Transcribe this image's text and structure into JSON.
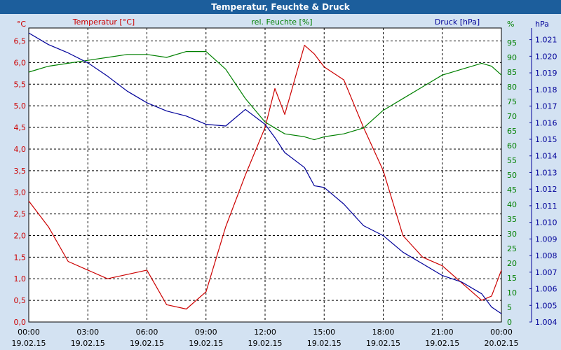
{
  "window": {
    "title": "Temperatur, Feuchte & Druck"
  },
  "colors": {
    "temperature": "#cc0000",
    "humidity": "#008000",
    "pressure": "#000099",
    "grid": "#000000",
    "plot_background": "#ffffff"
  },
  "chart_data": {
    "type": "line",
    "title": "Temperatur, Feuchte & Druck",
    "grid": true,
    "x_ticks": [
      {
        "time": "00:00",
        "date": "19.02.15"
      },
      {
        "time": "03:00",
        "date": "19.02.15"
      },
      {
        "time": "06:00",
        "date": "19.02.15"
      },
      {
        "time": "09:00",
        "date": "19.02.15"
      },
      {
        "time": "12:00",
        "date": "19.02.15"
      },
      {
        "time": "15:00",
        "date": "19.02.15"
      },
      {
        "time": "18:00",
        "date": "19.02.15"
      },
      {
        "time": "21:00",
        "date": "19.02.15"
      },
      {
        "time": "00:00",
        "date": "20.02.15"
      }
    ],
    "axes": {
      "left": {
        "title": "Temperatur [°C]",
        "unit": "°C",
        "range": [
          0,
          6.8
        ],
        "ticks": [
          "0,0",
          "0,5",
          "1,0",
          "1,5",
          "2,0",
          "2,5",
          "3,0",
          "3,5",
          "4,0",
          "4,5",
          "5,0",
          "5,5",
          "6,0",
          "6,5"
        ]
      },
      "right1": {
        "title": "rel. Feuchte [%]",
        "unit": "%",
        "range": [
          0,
          100
        ],
        "ticks": [
          "0",
          "5",
          "10",
          "15",
          "20",
          "25",
          "30",
          "35",
          "40",
          "45",
          "50",
          "55",
          "60",
          "65",
          "70",
          "75",
          "80",
          "85",
          "90",
          "95"
        ]
      },
      "right2": {
        "title": "Druck [hPa]",
        "unit": "hPa",
        "range": [
          1.004,
          1.0217
        ],
        "ticks": [
          "1.004",
          "1.005",
          "1.006",
          "1.007",
          "1.008",
          "1.009",
          "1.010",
          "1.011",
          "1.012",
          "1.013",
          "1.014",
          "1.015",
          "1.016",
          "1.017",
          "1.018",
          "1.019",
          "1.020",
          "1.021"
        ]
      }
    },
    "x": [
      "00:00",
      "01:00",
      "02:00",
      "03:00",
      "04:00",
      "05:00",
      "06:00",
      "07:00",
      "08:00",
      "09:00",
      "10:00",
      "11:00",
      "12:00",
      "12:30",
      "13:00",
      "14:00",
      "14:30",
      "15:00",
      "16:00",
      "17:00",
      "18:00",
      "19:00",
      "20:00",
      "21:00",
      "22:00",
      "23:00",
      "23:30",
      "24:00"
    ],
    "series": [
      {
        "name": "Temperatur [°C]",
        "axis": "left",
        "values": [
          2.8,
          2.2,
          1.4,
          1.2,
          1.0,
          1.1,
          1.2,
          0.4,
          0.3,
          0.7,
          2.2,
          3.4,
          4.5,
          5.4,
          4.8,
          6.4,
          6.2,
          5.9,
          5.6,
          4.5,
          3.5,
          2.0,
          1.5,
          1.3,
          0.9,
          0.5,
          0.6,
          1.2
        ]
      },
      {
        "name": "rel. Feuchte [%]",
        "axis": "right1",
        "values": [
          85,
          87,
          88,
          89,
          90,
          91,
          91,
          90,
          92,
          92,
          86,
          76,
          68,
          66,
          64,
          63,
          62,
          63,
          64,
          66,
          72,
          76,
          80,
          84,
          86,
          88,
          87,
          84
        ]
      },
      {
        "name": "Druck [hPa]",
        "axis": "right2",
        "values": [
          1.0214,
          1.0207,
          1.0202,
          1.0196,
          1.0188,
          1.0179,
          1.0172,
          1.0167,
          1.0164,
          1.0159,
          1.0158,
          1.0168,
          1.0159,
          1.0151,
          1.0142,
          1.0133,
          1.0122,
          1.0121,
          1.0111,
          1.0098,
          1.0092,
          1.0082,
          1.0075,
          1.0068,
          1.0064,
          1.0057,
          1.0049,
          1.0045
        ]
      }
    ]
  }
}
